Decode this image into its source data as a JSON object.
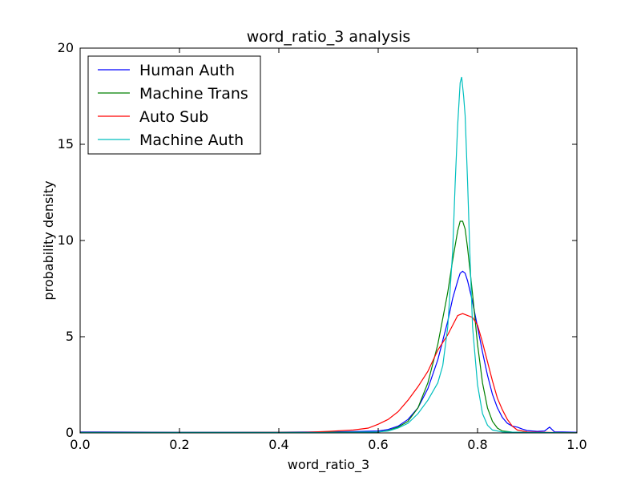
{
  "chart_data": {
    "type": "line",
    "title": "word_ratio_3 analysis",
    "xlabel": "word_ratio_3",
    "ylabel": "probability density",
    "xlim": [
      0.0,
      1.0
    ],
    "ylim": [
      0,
      20
    ],
    "xticks": [
      "0.0",
      "0.2",
      "0.4",
      "0.6",
      "0.8",
      "1.0"
    ],
    "yticks": [
      "0",
      "5",
      "10",
      "15",
      "20"
    ],
    "grid": false,
    "legend_position": "upper-left",
    "series": [
      {
        "name": "Human Auth",
        "color": "#0000ff",
        "points": [
          [
            0.0,
            0.05
          ],
          [
            0.2,
            0.03
          ],
          [
            0.3,
            0.03
          ],
          [
            0.4,
            0.04
          ],
          [
            0.5,
            0.05
          ],
          [
            0.55,
            0.07
          ],
          [
            0.6,
            0.1
          ],
          [
            0.62,
            0.18
          ],
          [
            0.64,
            0.35
          ],
          [
            0.66,
            0.7
          ],
          [
            0.68,
            1.3
          ],
          [
            0.7,
            2.3
          ],
          [
            0.72,
            3.8
          ],
          [
            0.74,
            5.8
          ],
          [
            0.75,
            7.0
          ],
          [
            0.76,
            7.9
          ],
          [
            0.765,
            8.3
          ],
          [
            0.77,
            8.4
          ],
          [
            0.775,
            8.3
          ],
          [
            0.78,
            7.9
          ],
          [
            0.79,
            6.8
          ],
          [
            0.8,
            5.5
          ],
          [
            0.81,
            4.2
          ],
          [
            0.82,
            3.0
          ],
          [
            0.83,
            2.0
          ],
          [
            0.84,
            1.3
          ],
          [
            0.85,
            0.8
          ],
          [
            0.86,
            0.5
          ],
          [
            0.87,
            0.35
          ],
          [
            0.88,
            0.3
          ],
          [
            0.89,
            0.2
          ],
          [
            0.9,
            0.12
          ],
          [
            0.92,
            0.08
          ],
          [
            0.935,
            0.1
          ],
          [
            0.945,
            0.3
          ],
          [
            0.955,
            0.05
          ],
          [
            0.97,
            0.05
          ],
          [
            1.0,
            0.03
          ]
        ]
      },
      {
        "name": "Machine Trans",
        "color": "#008000",
        "points": [
          [
            0.0,
            0.02
          ],
          [
            0.3,
            0.02
          ],
          [
            0.5,
            0.03
          ],
          [
            0.6,
            0.05
          ],
          [
            0.62,
            0.12
          ],
          [
            0.64,
            0.3
          ],
          [
            0.66,
            0.6
          ],
          [
            0.68,
            1.3
          ],
          [
            0.7,
            2.6
          ],
          [
            0.72,
            4.6
          ],
          [
            0.74,
            7.3
          ],
          [
            0.75,
            9.0
          ],
          [
            0.76,
            10.5
          ],
          [
            0.765,
            11.0
          ],
          [
            0.77,
            11.0
          ],
          [
            0.775,
            10.6
          ],
          [
            0.78,
            9.6
          ],
          [
            0.79,
            7.2
          ],
          [
            0.8,
            4.6
          ],
          [
            0.81,
            2.6
          ],
          [
            0.82,
            1.3
          ],
          [
            0.83,
            0.6
          ],
          [
            0.84,
            0.25
          ],
          [
            0.85,
            0.1
          ],
          [
            0.87,
            0.04
          ],
          [
            0.9,
            0.02
          ],
          [
            1.0,
            0.01
          ]
        ]
      },
      {
        "name": "Auto Sub",
        "color": "#ff0000",
        "points": [
          [
            0.0,
            0.02
          ],
          [
            0.3,
            0.02
          ],
          [
            0.45,
            0.03
          ],
          [
            0.5,
            0.08
          ],
          [
            0.55,
            0.15
          ],
          [
            0.58,
            0.25
          ],
          [
            0.6,
            0.45
          ],
          [
            0.62,
            0.7
          ],
          [
            0.64,
            1.1
          ],
          [
            0.66,
            1.7
          ],
          [
            0.68,
            2.4
          ],
          [
            0.7,
            3.2
          ],
          [
            0.72,
            4.3
          ],
          [
            0.74,
            5.1
          ],
          [
            0.75,
            5.6
          ],
          [
            0.76,
            6.1
          ],
          [
            0.77,
            6.2
          ],
          [
            0.78,
            6.1
          ],
          [
            0.79,
            6.0
          ],
          [
            0.8,
            5.6
          ],
          [
            0.81,
            4.7
          ],
          [
            0.82,
            3.7
          ],
          [
            0.83,
            2.7
          ],
          [
            0.84,
            1.8
          ],
          [
            0.85,
            1.2
          ],
          [
            0.86,
            0.7
          ],
          [
            0.87,
            0.35
          ],
          [
            0.88,
            0.15
          ],
          [
            0.9,
            0.05
          ],
          [
            0.95,
            0.02
          ],
          [
            1.0,
            0.01
          ]
        ]
      },
      {
        "name": "Machine Auth",
        "color": "#00bfbf",
        "points": [
          [
            0.0,
            0.02
          ],
          [
            0.3,
            0.02
          ],
          [
            0.5,
            0.02
          ],
          [
            0.6,
            0.05
          ],
          [
            0.62,
            0.1
          ],
          [
            0.64,
            0.25
          ],
          [
            0.66,
            0.5
          ],
          [
            0.68,
            1.0
          ],
          [
            0.7,
            1.7
          ],
          [
            0.72,
            2.6
          ],
          [
            0.73,
            3.5
          ],
          [
            0.74,
            5.5
          ],
          [
            0.75,
            9.5
          ],
          [
            0.755,
            13.0
          ],
          [
            0.76,
            16.0
          ],
          [
            0.765,
            18.2
          ],
          [
            0.768,
            18.5
          ],
          [
            0.772,
            17.5
          ],
          [
            0.775,
            16.5
          ],
          [
            0.78,
            13.0
          ],
          [
            0.785,
            9.0
          ],
          [
            0.79,
            5.5
          ],
          [
            0.8,
            2.5
          ],
          [
            0.81,
            1.0
          ],
          [
            0.82,
            0.4
          ],
          [
            0.83,
            0.15
          ],
          [
            0.85,
            0.05
          ],
          [
            0.9,
            0.02
          ],
          [
            1.0,
            0.01
          ]
        ]
      }
    ]
  }
}
